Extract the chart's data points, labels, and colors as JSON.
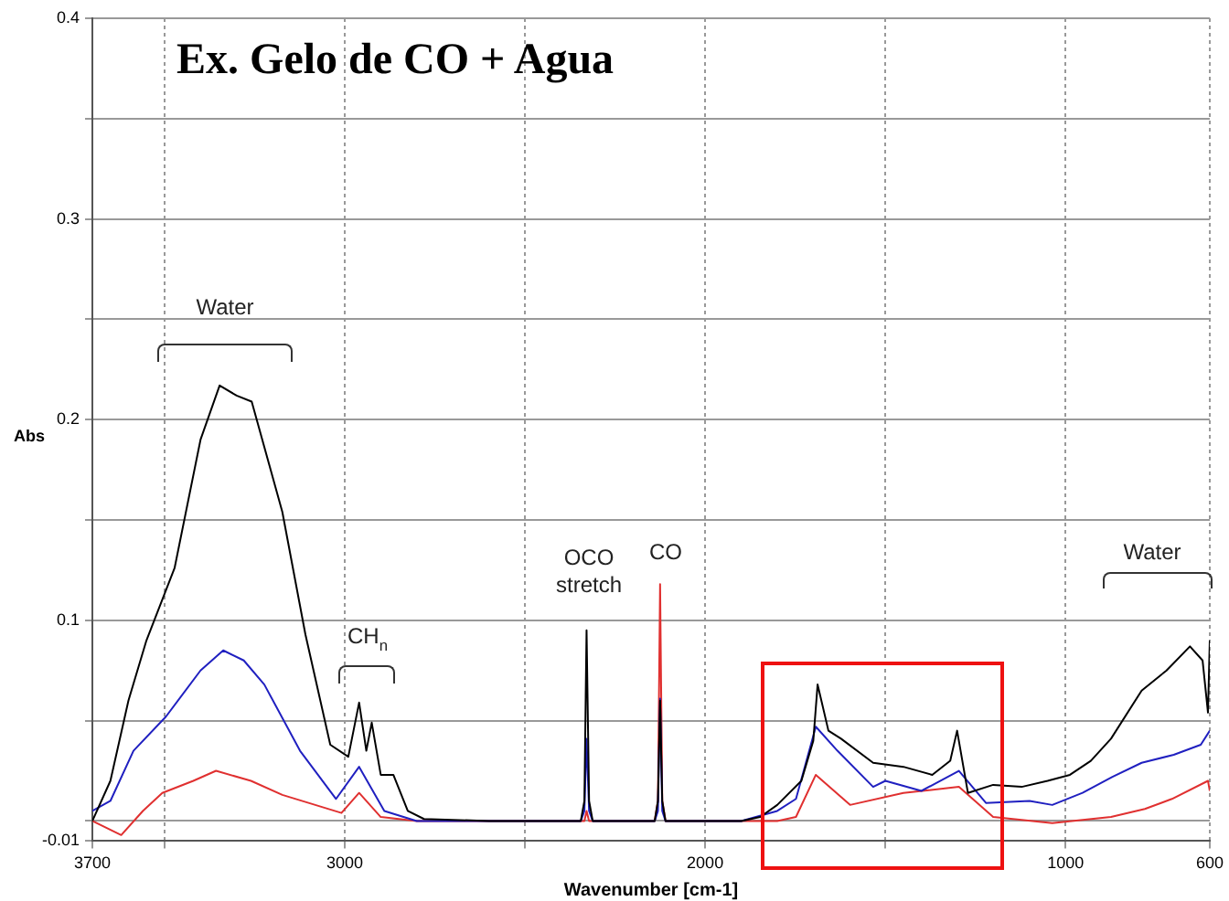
{
  "chart_data": {
    "type": "line",
    "title": "Ex. Gelo de CO + Agua",
    "xlabel": "Wavenumber [cm-1]",
    "ylabel": "Abs",
    "xlim": [
      3700,
      600
    ],
    "ylim": [
      -0.01,
      0.4
    ],
    "xticks": [
      3700,
      {
        "value": 3500,
        "label": null
      },
      3000,
      {
        "value": 2500,
        "label": null
      },
      2000,
      {
        "value": 1500,
        "label": null
      },
      1000,
      600
    ],
    "yticks": [
      -0.01,
      {
        "value": 0,
        "label": null
      },
      {
        "value": 0.05,
        "label": null
      },
      0.1,
      {
        "value": 0.15,
        "label": null
      },
      0.2,
      {
        "value": 0.25,
        "label": null
      },
      0.3,
      {
        "value": 0.35,
        "label": null
      },
      0.4
    ],
    "grid": true,
    "legend": false,
    "marker": "none",
    "line_style": "solid",
    "annotations": [
      "Water",
      "CH$_{n}$",
      "OCO stretch",
      "CO",
      "Water"
    ],
    "series": [
      {
        "color": "#000000",
        "x": [
          3700,
          3650,
          3600,
          3550,
          3472,
          3400,
          3347,
          3300,
          3258,
          3173,
          3109,
          3040,
          2990,
          2960,
          2940,
          2925,
          2900,
          2865,
          2825,
          2780,
          2600,
          2400,
          2345,
          2335,
          2329,
          2322,
          2312,
          2200,
          2140,
          2131,
          2125,
          2119,
          2110,
          2000,
          1900,
          1847,
          1800,
          1733,
          1700,
          1688,
          1658,
          1623,
          1534,
          1450,
          1370,
          1320,
          1301,
          1271,
          1201,
          1122,
          1050,
          988,
          930,
          874,
          789,
          720,
          655,
          620,
          605,
          600
        ],
        "values": [
          0.0,
          0.02,
          0.06,
          0.09,
          0.126,
          0.19,
          0.217,
          0.212,
          0.209,
          0.154,
          0.093,
          0.038,
          0.032,
          0.059,
          0.035,
          0.049,
          0.023,
          0.023,
          0.005,
          0.001,
          0.0,
          0.0,
          0.0,
          0.01,
          0.095,
          0.01,
          0.0,
          0.0,
          0.0,
          0.01,
          0.06,
          0.01,
          0.0,
          0.0,
          0.0,
          0.002,
          0.008,
          0.02,
          0.04,
          0.068,
          0.045,
          0.041,
          0.029,
          0.027,
          0.023,
          0.03,
          0.045,
          0.014,
          0.018,
          0.017,
          0.02,
          0.023,
          0.03,
          0.041,
          0.065,
          0.075,
          0.087,
          0.08,
          0.054,
          0.09
        ]
      },
      {
        "color": "#2020c0",
        "x": [
          3700,
          3650,
          3586,
          3496,
          3400,
          3337,
          3280,
          3223,
          3124,
          3024,
          2960,
          2890,
          2800,
          2600,
          2400,
          2345,
          2335,
          2329,
          2322,
          2312,
          2200,
          2140,
          2131,
          2125,
          2119,
          2110,
          2000,
          1900,
          1800,
          1748,
          1693,
          1633,
          1534,
          1500,
          1400,
          1296,
          1221,
          1100,
          1037,
          953,
          870,
          789,
          700,
          625,
          600
        ],
        "values": [
          0.005,
          0.01,
          0.035,
          0.052,
          0.075,
          0.085,
          0.08,
          0.068,
          0.035,
          0.011,
          0.027,
          0.005,
          0.0,
          0.0,
          0.0,
          0.0,
          0.005,
          0.041,
          0.005,
          0.0,
          0.0,
          0.0,
          0.005,
          0.061,
          0.005,
          0.0,
          0.0,
          0.0,
          0.005,
          0.011,
          0.047,
          0.035,
          0.017,
          0.02,
          0.015,
          0.025,
          0.009,
          0.01,
          0.008,
          0.014,
          0.022,
          0.029,
          0.033,
          0.038,
          0.045
        ]
      },
      {
        "color": "#e03030",
        "x": [
          3700,
          3620,
          3560,
          3506,
          3420,
          3357,
          3260,
          3173,
          3009,
          2960,
          2900,
          2800,
          2600,
          2400,
          2335,
          2329,
          2322,
          2200,
          2140,
          2131,
          2125,
          2119,
          2110,
          2000,
          1900,
          1800,
          1748,
          1693,
          1598,
          1450,
          1296,
          1201,
          1037,
          874,
          780,
          705,
          605,
          600
        ],
        "values": [
          0.0,
          -0.007,
          0.005,
          0.014,
          0.02,
          0.025,
          0.02,
          0.013,
          0.004,
          0.014,
          0.002,
          0.0,
          0.0,
          0.0,
          0.0,
          0.005,
          0.0,
          0.0,
          0.0,
          0.01,
          0.118,
          0.01,
          0.0,
          0.0,
          0.0,
          0.0,
          0.002,
          0.023,
          0.008,
          0.014,
          0.017,
          0.002,
          -0.001,
          0.002,
          0.006,
          0.011,
          0.02,
          0.015
        ]
      }
    ]
  }
}
